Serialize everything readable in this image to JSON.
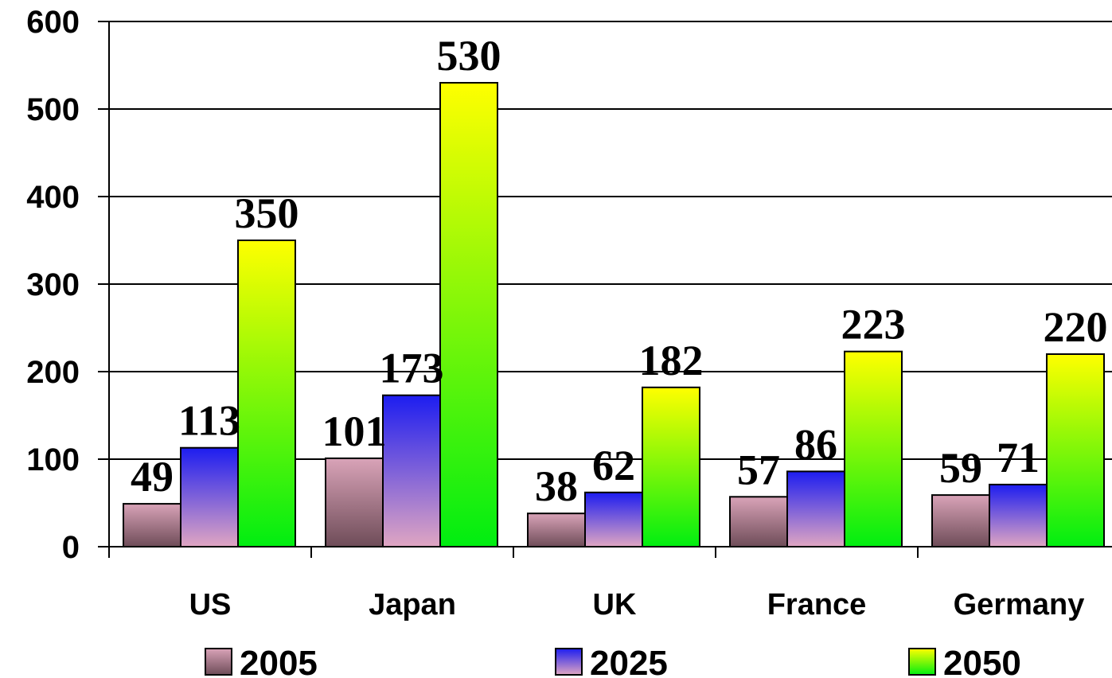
{
  "chart_data": {
    "type": "bar",
    "title": "",
    "xlabel": "",
    "ylabel": "",
    "categories": [
      "US",
      "Japan",
      "UK",
      "France",
      "Germany"
    ],
    "series": [
      {
        "name": "2005",
        "values": [
          49,
          101,
          38,
          57,
          59
        ]
      },
      {
        "name": "2025",
        "values": [
          113,
          173,
          62,
          86,
          71
        ]
      },
      {
        "name": "2050",
        "values": [
          350,
          530,
          182,
          223,
          220
        ]
      }
    ],
    "ylim": [
      0,
      600
    ],
    "yticks": [
      "0",
      "100",
      "200",
      "300",
      "400",
      "500",
      "600"
    ],
    "grid": true,
    "legend_position": "bottom",
    "colors": {
      "2005": {
        "top": "#d9a3b8",
        "bottom": "#6e4c58"
      },
      "2025": {
        "top": "#1d1df0",
        "bottom": "#e0a6c2"
      },
      "2050": {
        "top": "#ffff00",
        "bottom": "#00ee11"
      }
    }
  }
}
